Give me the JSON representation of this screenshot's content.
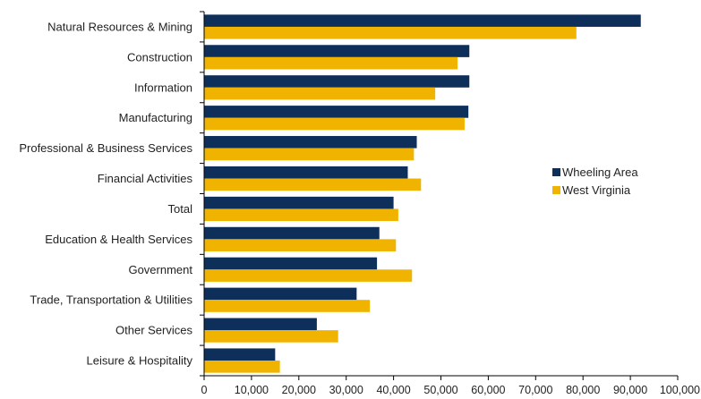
{
  "chart_data": {
    "type": "bar",
    "orientation": "horizontal",
    "categories": [
      "Natural Resources & Mining",
      "Construction",
      "Information",
      "Manufacturing",
      "Professional & Business Services",
      "Financial Activities",
      "Total",
      "Education & Health Services",
      "Government",
      "Trade, Transportation & Utilities",
      "Other Services",
      "Leisure & Hospitality"
    ],
    "series": [
      {
        "name": "Wheeling Area",
        "color": "#0d2f5a",
        "values": [
          92200,
          56000,
          56000,
          55800,
          44900,
          43000,
          40000,
          37000,
          36500,
          32200,
          23800,
          15000
        ]
      },
      {
        "name": "West Virginia",
        "color": "#f0b400",
        "values": [
          78600,
          53500,
          48800,
          55000,
          44300,
          45800,
          41000,
          40500,
          43900,
          35000,
          28300,
          16000
        ]
      }
    ],
    "xlim": [
      0,
      100000
    ],
    "xticks": [
      0,
      10000,
      20000,
      30000,
      40000,
      50000,
      60000,
      70000,
      80000,
      90000,
      100000
    ],
    "xtick_labels": [
      "0",
      "10,000",
      "20,000",
      "30,000",
      "40,000",
      "50,000",
      "60,000",
      "70,000",
      "80,000",
      "90,000",
      "100,000"
    ],
    "grid": false,
    "legend_position": "right"
  }
}
